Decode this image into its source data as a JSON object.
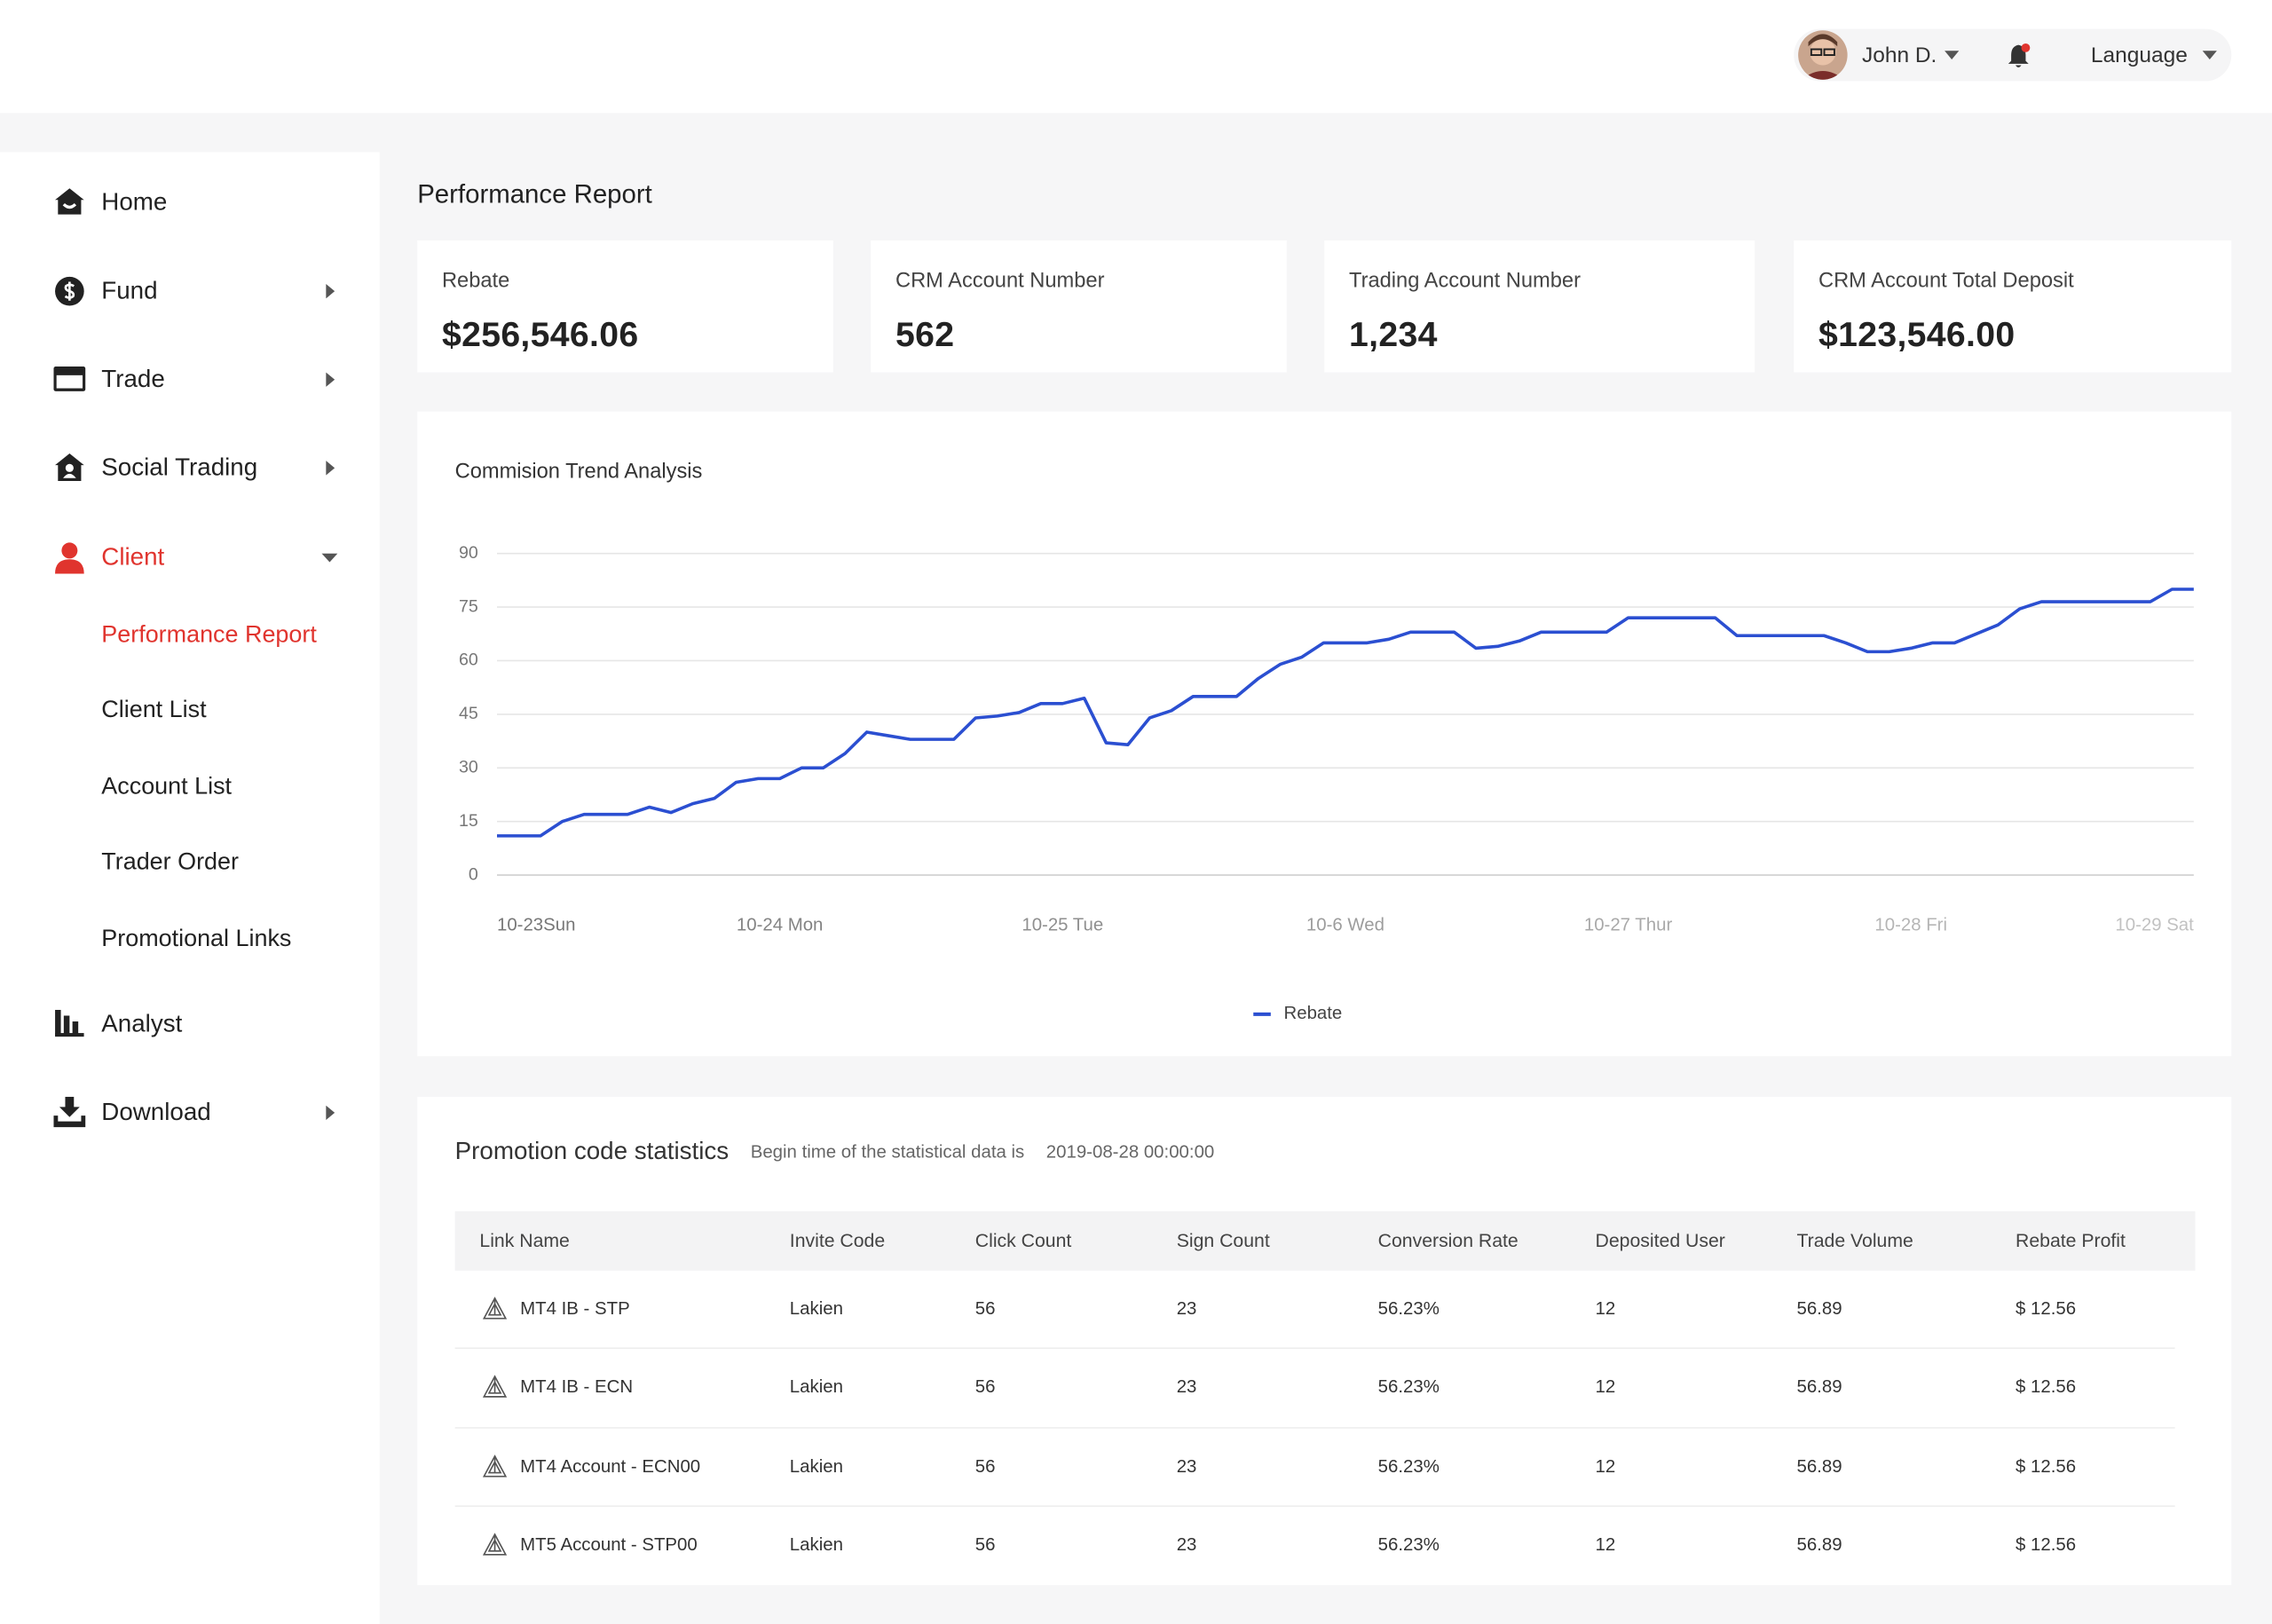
{
  "header": {
    "user": "John D.",
    "language": "Language"
  },
  "sidebar": {
    "items": [
      {
        "label": "Home"
      },
      {
        "label": "Fund"
      },
      {
        "label": "Trade"
      },
      {
        "label": "Social Trading"
      },
      {
        "label": "Client",
        "children": [
          "Performance Report",
          "Client List",
          "Account List",
          "Trader Order",
          "Promotional Links"
        ]
      },
      {
        "label": "Analyst"
      },
      {
        "label": "Download"
      }
    ]
  },
  "page_title": "Performance Report",
  "cards": [
    {
      "label": "Rebate",
      "value": "$256,546.06"
    },
    {
      "label": "CRM Account Number",
      "value": "562"
    },
    {
      "label": "Trading Account Number",
      "value": "1,234"
    },
    {
      "label": "CRM Account Total Deposit",
      "value": "$123,546.00"
    }
  ],
  "chart_data": {
    "type": "line",
    "title": "Commision Trend Analysis",
    "categories": [
      "10-23Sun",
      null,
      null,
      null,
      null,
      null,
      null,
      null,
      null,
      null,
      null,
      null,
      null,
      "10-24 Mon",
      null,
      null,
      null,
      null,
      null,
      null,
      null,
      null,
      null,
      null,
      null,
      null,
      "10-25 Tue",
      null,
      null,
      null,
      null,
      null,
      null,
      null,
      null,
      null,
      null,
      null,
      null,
      "10-6 Wed",
      null,
      null,
      null,
      null,
      null,
      null,
      null,
      null,
      null,
      null,
      null,
      null,
      "10-27 Thur",
      null,
      null,
      null,
      null,
      null,
      null,
      null,
      null,
      null,
      null,
      null,
      null,
      "10-28 Fri",
      null,
      null,
      null,
      null,
      null,
      null,
      null,
      null,
      null,
      null,
      null,
      null,
      "10-29 Sat"
    ],
    "series": [
      {
        "name": "Rebate",
        "color": "#2b4fd1",
        "values": [
          11,
          11,
          11,
          15,
          17,
          17,
          17,
          19,
          17.5,
          20,
          21.5,
          26,
          27,
          27,
          30,
          30,
          34,
          40,
          39,
          38,
          38,
          38,
          44,
          44.5,
          45.5,
          48,
          48,
          49.5,
          37,
          36.5,
          44,
          46,
          50,
          50,
          50,
          55,
          59,
          61,
          65,
          65,
          65,
          66,
          68,
          68,
          68,
          63.5,
          64,
          65.5,
          68,
          68,
          68,
          68,
          72,
          72,
          72,
          72,
          72,
          67,
          67,
          67,
          67,
          67,
          65,
          62.5,
          62.5,
          63.5,
          65,
          65,
          67.5,
          70,
          74.5,
          76.5,
          76.5,
          76.5,
          76.5,
          76.5,
          76.5,
          80,
          80
        ]
      }
    ],
    "ylim": [
      0,
      90
    ],
    "yticks": [
      0,
      15,
      30,
      45,
      60,
      75,
      90
    ],
    "grid": true,
    "legend": "bottom"
  },
  "promo": {
    "title": "Promotion code statistics",
    "subtitle": "Begin time of the statistical data is",
    "begin_time": "2019-08-28 00:00:00",
    "columns": [
      "Link Name",
      "Invite Code",
      "Click Count",
      "Sign Count",
      "Conversion Rate",
      "Deposited User",
      "Trade Volume",
      "Rebate Profit"
    ],
    "rows": [
      [
        "MT4 IB - STP",
        "Lakien",
        "56",
        "23",
        "56.23%",
        "12",
        "56.89",
        "$ 12.56"
      ],
      [
        "MT4 IB - ECN",
        "Lakien",
        "56",
        "23",
        "56.23%",
        "12",
        "56.89",
        "$ 12.56"
      ],
      [
        "MT4 Account - ECN00",
        "Lakien",
        "56",
        "23",
        "56.23%",
        "12",
        "56.89",
        "$ 12.56"
      ],
      [
        "MT5 Account - STP00",
        "Lakien",
        "56",
        "23",
        "56.23%",
        "12",
        "56.89",
        "$ 12.56"
      ]
    ]
  }
}
